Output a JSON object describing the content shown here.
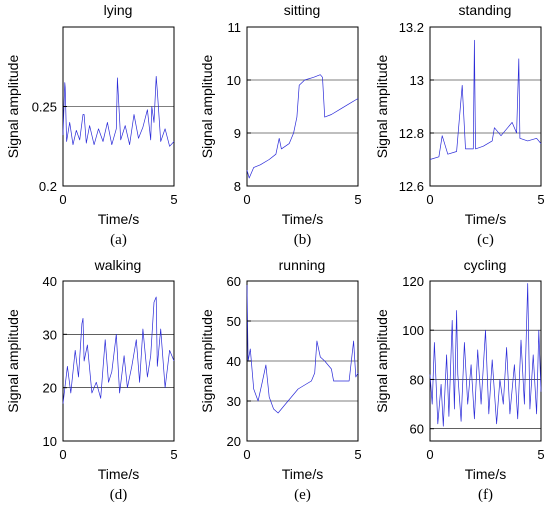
{
  "chart_data": [
    {
      "type": "line",
      "title": "lying",
      "xlabel": "Time/s",
      "ylabel": "Signal amplitude",
      "caption": "(a)",
      "xlim": [
        0,
        5
      ],
      "ylim": [
        0.2,
        0.3
      ],
      "xticks": [
        "0",
        "5"
      ],
      "yticks": [
        {
          "value": 0.2,
          "label": "0.2"
        },
        {
          "value": 0.25,
          "label": "0.25"
        }
      ],
      "grid": "horizontal",
      "series": [
        {
          "values": [
            [
              0,
              0.232
            ],
            [
              0.08,
              0.265
            ],
            [
              0.16,
              0.228
            ],
            [
              0.3,
              0.24
            ],
            [
              0.45,
              0.226
            ],
            [
              0.6,
              0.235
            ],
            [
              0.75,
              0.229
            ],
            [
              0.9,
              0.245
            ],
            [
              1.05,
              0.227
            ],
            [
              1.2,
              0.238
            ],
            [
              1.4,
              0.226
            ],
            [
              1.6,
              0.236
            ],
            [
              1.8,
              0.228
            ],
            [
              2.0,
              0.24
            ],
            [
              2.2,
              0.226
            ],
            [
              2.4,
              0.236
            ],
            [
              2.6,
              0.229
            ],
            [
              2.8,
              0.238
            ],
            [
              3.0,
              0.226
            ],
            [
              3.2,
              0.245
            ],
            [
              3.4,
              0.23
            ],
            [
              3.6,
              0.237
            ],
            [
              3.8,
              0.248
            ],
            [
              3.95,
              0.229
            ],
            [
              4.1,
              0.24
            ],
            [
              4.25,
              0.26
            ],
            [
              4.4,
              0.228
            ],
            [
              4.6,
              0.236
            ],
            [
              4.8,
              0.225
            ],
            [
              5.0,
              0.228
            ]
          ],
          "peaks": [
            [
              0.1,
              0.262
            ],
            [
              0.95,
              0.245
            ],
            [
              2.45,
              0.268
            ],
            [
              4.0,
              0.25
            ],
            [
              4.2,
              0.269
            ]
          ]
        }
      ]
    },
    {
      "type": "line",
      "title": "sitting",
      "xlabel": "Time/s",
      "ylabel": "Signal amplitude",
      "caption": "(b)",
      "xlim": [
        0,
        5
      ],
      "ylim": [
        8,
        11
      ],
      "xticks": [
        "0",
        "5"
      ],
      "yticks": [
        {
          "value": 8,
          "label": "8"
        },
        {
          "value": 9,
          "label": "9"
        },
        {
          "value": 10,
          "label": "10"
        },
        {
          "value": 11,
          "label": "11"
        }
      ],
      "grid": "horizontal",
      "series": [
        {
          "values": [
            [
              0,
              8.3
            ],
            [
              0.1,
              8.15
            ],
            [
              0.3,
              8.35
            ],
            [
              0.6,
              8.4
            ],
            [
              1.0,
              8.5
            ],
            [
              1.3,
              8.6
            ],
            [
              1.45,
              8.9
            ],
            [
              1.55,
              8.7
            ],
            [
              1.9,
              8.8
            ],
            [
              2.1,
              9.0
            ],
            [
              2.25,
              9.3
            ],
            [
              2.35,
              9.9
            ],
            [
              2.6,
              10.0
            ],
            [
              3.0,
              10.05
            ],
            [
              3.3,
              10.1
            ],
            [
              3.4,
              10.05
            ],
            [
              3.5,
              9.3
            ],
            [
              3.8,
              9.35
            ],
            [
              4.2,
              9.45
            ],
            [
              4.6,
              9.55
            ],
            [
              5.0,
              9.65
            ]
          ]
        }
      ]
    },
    {
      "type": "line",
      "title": "standing",
      "xlabel": "Time/s",
      "ylabel": "Signal amplitude",
      "caption": "(c)",
      "xlim": [
        0,
        5
      ],
      "ylim": [
        12.6,
        13.2
      ],
      "xticks": [
        "0",
        "5"
      ],
      "yticks": [
        {
          "value": 12.6,
          "label": "12.6"
        },
        {
          "value": 12.8,
          "label": "12.8"
        },
        {
          "value": 13,
          "label": "13"
        },
        {
          "value": 13.2,
          "label": "13.2"
        }
      ],
      "grid": "horizontal",
      "series": [
        {
          "values": [
            [
              0,
              12.7
            ],
            [
              0.4,
              12.71
            ],
            [
              0.8,
              12.72
            ],
            [
              1.2,
              12.73
            ],
            [
              1.6,
              12.74
            ],
            [
              1.95,
              12.74
            ],
            [
              2.0,
              13.15
            ],
            [
              2.05,
              12.74
            ],
            [
              2.4,
              12.75
            ],
            [
              2.8,
              12.77
            ],
            [
              3.2,
              12.79
            ],
            [
              3.5,
              12.82
            ],
            [
              3.7,
              12.84
            ],
            [
              3.9,
              12.8
            ],
            [
              4.0,
              13.08
            ],
            [
              4.05,
              12.78
            ],
            [
              4.4,
              12.77
            ],
            [
              4.8,
              12.78
            ],
            [
              5.0,
              12.76
            ]
          ],
          "peaks": [
            [
              0.55,
              12.79
            ],
            [
              1.45,
              12.98
            ],
            [
              2.9,
              12.82
            ]
          ]
        }
      ]
    },
    {
      "type": "line",
      "title": "walking",
      "xlabel": "Time/s",
      "ylabel": "Signal amplitude",
      "caption": "(d)",
      "xlim": [
        0,
        5
      ],
      "ylim": [
        10,
        40
      ],
      "xticks": [
        "0",
        "5"
      ],
      "yticks": [
        {
          "value": 10,
          "label": "10"
        },
        {
          "value": 20,
          "label": "20"
        },
        {
          "value": 30,
          "label": "30"
        },
        {
          "value": 40,
          "label": "40"
        }
      ],
      "grid": "horizontal",
      "series": [
        {
          "values": [
            [
              0,
              17
            ],
            [
              0.2,
              24
            ],
            [
              0.35,
              19
            ],
            [
              0.55,
              27
            ],
            [
              0.7,
              22
            ],
            [
              0.85,
              32
            ],
            [
              0.95,
              25
            ],
            [
              1.1,
              28
            ],
            [
              1.3,
              19
            ],
            [
              1.5,
              21
            ],
            [
              1.7,
              18
            ],
            [
              1.9,
              29
            ],
            [
              2.05,
              21
            ],
            [
              2.2,
              23
            ],
            [
              2.4,
              30
            ],
            [
              2.55,
              19
            ],
            [
              2.75,
              26
            ],
            [
              2.9,
              20
            ],
            [
              3.1,
              24
            ],
            [
              3.3,
              29
            ],
            [
              3.45,
              21
            ],
            [
              3.6,
              31
            ],
            [
              3.8,
              22
            ],
            [
              3.95,
              26
            ],
            [
              4.1,
              36
            ],
            [
              4.25,
              24
            ],
            [
              4.4,
              31
            ],
            [
              4.6,
              20
            ],
            [
              4.8,
              27
            ],
            [
              5.0,
              25
            ]
          ],
          "peaks": [
            [
              0.9,
              33
            ],
            [
              4.2,
              37
            ]
          ]
        }
      ]
    },
    {
      "type": "line",
      "title": "running",
      "xlabel": "Time/s",
      "ylabel": "Signal amplitude",
      "caption": "(e)",
      "xlim": [
        0,
        5
      ],
      "ylim": [
        20,
        60
      ],
      "xticks": [
        "0",
        "5"
      ],
      "yticks": [
        {
          "value": 20,
          "label": "20"
        },
        {
          "value": 30,
          "label": "30"
        },
        {
          "value": 40,
          "label": "40"
        },
        {
          "value": 50,
          "label": "50"
        },
        {
          "value": 60,
          "label": "60"
        }
      ],
      "grid": "horizontal",
      "series": [
        {
          "values": [
            [
              0,
              59
            ],
            [
              0.05,
              40
            ],
            [
              0.15,
              43
            ],
            [
              0.3,
              33
            ],
            [
              0.5,
              30
            ],
            [
              0.7,
              35
            ],
            [
              0.85,
              39
            ],
            [
              1.0,
              31
            ],
            [
              1.2,
              28
            ],
            [
              1.4,
              27
            ],
            [
              1.7,
              29
            ],
            [
              2.0,
              31
            ],
            [
              2.3,
              33
            ],
            [
              2.6,
              34
            ],
            [
              2.9,
              35
            ],
            [
              3.05,
              37
            ],
            [
              3.15,
              45
            ],
            [
              3.3,
              41
            ],
            [
              3.5,
              40
            ],
            [
              3.8,
              38
            ],
            [
              3.9,
              35
            ],
            [
              4.2,
              35
            ],
            [
              4.6,
              35
            ],
            [
              4.8,
              45
            ],
            [
              4.9,
              36
            ],
            [
              5.0,
              37
            ]
          ]
        }
      ]
    },
    {
      "type": "line",
      "title": "cycling",
      "xlabel": "Time/s",
      "ylabel": "Signal amplitude",
      "caption": "(f)",
      "xlim": [
        0,
        5
      ],
      "ylim": [
        55,
        120
      ],
      "xticks": [
        "0",
        "5"
      ],
      "yticks": [
        {
          "value": 60,
          "label": "60"
        },
        {
          "value": 80,
          "label": "80"
        },
        {
          "value": 100,
          "label": "100"
        },
        {
          "value": 120,
          "label": "120"
        }
      ],
      "grid": "horizontal",
      "series": [
        {
          "values": [
            [
              0,
              82
            ],
            [
              0.1,
              70
            ],
            [
              0.2,
              95
            ],
            [
              0.35,
              62
            ],
            [
              0.5,
              78
            ],
            [
              0.6,
              61
            ],
            [
              0.75,
              90
            ],
            [
              0.85,
              65
            ],
            [
              1.0,
              104
            ],
            [
              1.1,
              68
            ],
            [
              1.25,
              82
            ],
            [
              1.4,
              63
            ],
            [
              1.55,
              95
            ],
            [
              1.7,
              70
            ],
            [
              1.85,
              86
            ],
            [
              2.0,
              64
            ],
            [
              2.15,
              92
            ],
            [
              2.3,
              70
            ],
            [
              2.5,
              100
            ],
            [
              2.65,
              66
            ],
            [
              2.8,
              88
            ],
            [
              3.0,
              62
            ],
            [
              3.15,
              80
            ],
            [
              3.3,
              70
            ],
            [
              3.45,
              93
            ],
            [
              3.6,
              66
            ],
            [
              3.8,
              86
            ],
            [
              3.95,
              64
            ],
            [
              4.1,
              96
            ],
            [
              4.25,
              70
            ],
            [
              4.4,
              119
            ],
            [
              4.5,
              68
            ],
            [
              4.65,
              90
            ],
            [
              4.8,
              66
            ],
            [
              4.9,
              100
            ],
            [
              5.0,
              75
            ]
          ],
          "peaks": [
            [
              1.2,
              108
            ]
          ]
        }
      ]
    }
  ]
}
